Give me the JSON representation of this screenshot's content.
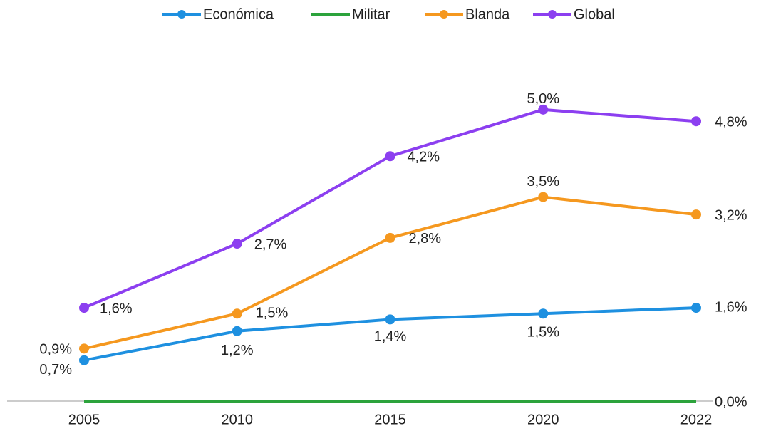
{
  "chart_data": {
    "type": "line",
    "categories": [
      "2005",
      "2010",
      "2015",
      "2020",
      "2022"
    ],
    "ylim": [
      0,
      6
    ],
    "series": [
      {
        "name": "Económica",
        "color": "#1e90e0",
        "markers": true,
        "values": [
          0.7,
          1.2,
          1.4,
          1.5,
          1.6
        ],
        "value_labels": [
          "0,7%",
          "1,2%",
          "1,4%",
          "1,5%",
          "1,6%"
        ]
      },
      {
        "name": "Militar",
        "color": "#2ca33c",
        "markers": false,
        "values": [
          0,
          0,
          0,
          0,
          0
        ],
        "value_labels": [
          null,
          null,
          null,
          null,
          "0,0%"
        ]
      },
      {
        "name": "Blanda",
        "color": "#f5981f",
        "markers": true,
        "values": [
          0.9,
          1.5,
          2.8,
          3.5,
          3.2
        ],
        "value_labels": [
          "0,9%",
          "1,5%",
          "2,8%",
          "3,5%",
          "3,2%"
        ]
      },
      {
        "name": "Global",
        "color": "#8c3ff0",
        "markers": true,
        "values": [
          1.6,
          2.7,
          4.2,
          5.0,
          4.8
        ],
        "value_labels": [
          "1,6%",
          "2,7%",
          "4,2%",
          "5,0%",
          "4,8%"
        ]
      }
    ]
  }
}
